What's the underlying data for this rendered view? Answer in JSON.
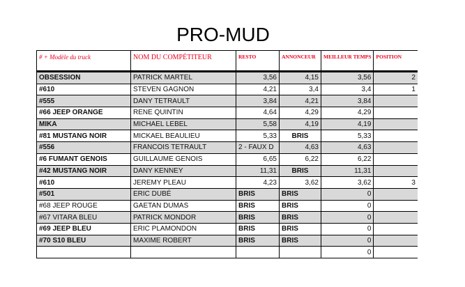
{
  "title": "PRO-MUD",
  "headers": [
    "# + Modèle du truck",
    "NOM DU COMPÉTITEUR",
    "RESTO",
    "ANNONCEUR",
    "MEILLEUR TEMPS",
    "POSITION"
  ],
  "rows": [
    {
      "truck": "OBSESSION",
      "bold": true,
      "name": "PATRICK MARTEL",
      "resto": "3,56",
      "annonceur": "4,15",
      "best": "3,56",
      "position": "2"
    },
    {
      "truck": "#610",
      "bold": true,
      "name": "STEVEN GAGNON",
      "resto": "4,21",
      "annonceur": "3,4",
      "best": "3,4",
      "position": "1"
    },
    {
      "truck": "#555",
      "bold": true,
      "name": "DANY TETRAULT",
      "resto": "3,84",
      "annonceur": "4,21",
      "best": "3,84",
      "position": ""
    },
    {
      "truck": "#66 JEEP ORANGE",
      "bold": true,
      "name": "RENE QUINTIN",
      "resto": "4,64",
      "annonceur": "4,29",
      "best": "4,29",
      "position": ""
    },
    {
      "truck": "MIKA",
      "bold": true,
      "name": "MICHAEL LEBEL",
      "resto": "5,58",
      "annonceur": "4,19",
      "best": "4,19",
      "position": ""
    },
    {
      "truck": "#81 MUSTANG NOIR",
      "bold": true,
      "name": "MICKAEL BEAULIEU",
      "resto": "5,33",
      "annonceur": "BRIS",
      "best": "5,33",
      "position": ""
    },
    {
      "truck": "#556",
      "bold": true,
      "name": "FRANCOIS TETRAULT",
      "resto": "2 - FAUX D",
      "annonceur": "4,63",
      "best": "4,63",
      "position": ""
    },
    {
      "truck": "#6 FUMANT GENOIS",
      "bold": true,
      "name": "GUILLAUME GENOIS",
      "resto": "6,65",
      "annonceur": "6,22",
      "best": "6,22",
      "position": ""
    },
    {
      "truck": "#42 MUSTANG NOIR",
      "bold": true,
      "name": "DANY KENNEY",
      "resto": "11,31",
      "annonceur": "BRIS",
      "best": "11,31",
      "position": ""
    },
    {
      "truck": "#610",
      "bold": true,
      "name": "JEREMY PLEAU",
      "resto": "4,23",
      "annonceur": "3,62",
      "best": "3,62",
      "position": "3"
    },
    {
      "truck": "#501",
      "bold": true,
      "name": "ERIC DUBÉ",
      "resto": "BRIS",
      "annonceur": "BRIS",
      "best": "0",
      "position": ""
    },
    {
      "truck": "#68 JEEP ROUGE",
      "bold": false,
      "name": "GAETAN DUMAS",
      "resto": "BRIS",
      "annonceur": "BRIS",
      "best": "0",
      "position": ""
    },
    {
      "truck": "#67 VITARA BLEU",
      "bold": false,
      "name": "PATRICK MONDOR",
      "resto": "BRIS",
      "annonceur": "BRIS",
      "best": "0",
      "position": ""
    },
    {
      "truck": "#69 JEEP BLEU",
      "bold": true,
      "name": "ERIC PLAMONDON",
      "resto": "BRIS",
      "annonceur": "BRIS",
      "best": "0",
      "position": ""
    },
    {
      "truck": "#70 S10 BLEU",
      "bold": true,
      "name": "MAXIME ROBERT",
      "resto": "BRIS",
      "annonceur": "BRIS",
      "best": "0",
      "position": ""
    },
    {
      "truck": "",
      "bold": false,
      "name": "",
      "resto": "",
      "annonceur": "",
      "best": "0",
      "position": ""
    }
  ],
  "colors": {
    "header_text": "#e8001c",
    "row_shade": "#d9d9d9"
  }
}
